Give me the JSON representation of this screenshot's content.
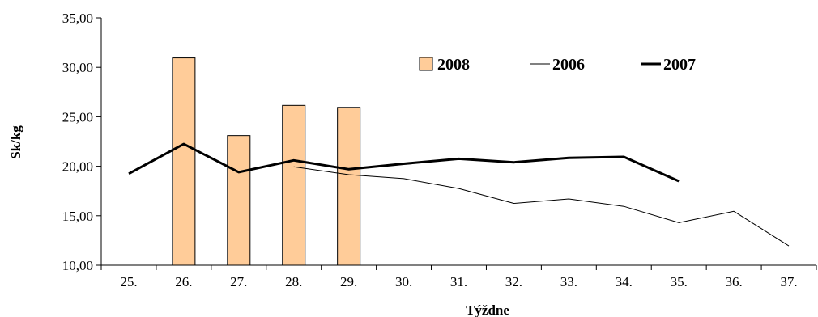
{
  "chart_data": {
    "type": "bar+line",
    "title": "",
    "xlabel": "Týždne",
    "ylabel": "Sk/kg",
    "ylim": [
      10,
      35
    ],
    "yticks": [
      10,
      15,
      20,
      25,
      30,
      35
    ],
    "ytick_labels": [
      "10,00",
      "15,00",
      "20,00",
      "25,00",
      "30,00",
      "35,00"
    ],
    "categories": [
      "25.",
      "26.",
      "27.",
      "28.",
      "29.",
      "30.",
      "31.",
      "32.",
      "33.",
      "34.",
      "35.",
      "36.",
      "37."
    ],
    "grid": false,
    "legend_position": "top-right",
    "series": [
      {
        "name": "2008",
        "kind": "bar",
        "color": "#FFCC99",
        "stroke": "#000000",
        "values": [
          null,
          30.95,
          23.1,
          26.15,
          25.95,
          null,
          null,
          null,
          null,
          null,
          null,
          null,
          null
        ]
      },
      {
        "name": "2006",
        "kind": "line",
        "color": "#000000",
        "width": "thin",
        "values": [
          null,
          null,
          null,
          19.95,
          19.15,
          18.75,
          17.75,
          16.25,
          16.7,
          15.95,
          14.3,
          15.45,
          11.95
        ]
      },
      {
        "name": "2007",
        "kind": "line",
        "color": "#000000",
        "width": "thick",
        "values": [
          19.25,
          22.25,
          19.4,
          20.6,
          19.7,
          20.25,
          20.75,
          20.4,
          20.85,
          20.95,
          18.5,
          null,
          null
        ]
      }
    ]
  }
}
